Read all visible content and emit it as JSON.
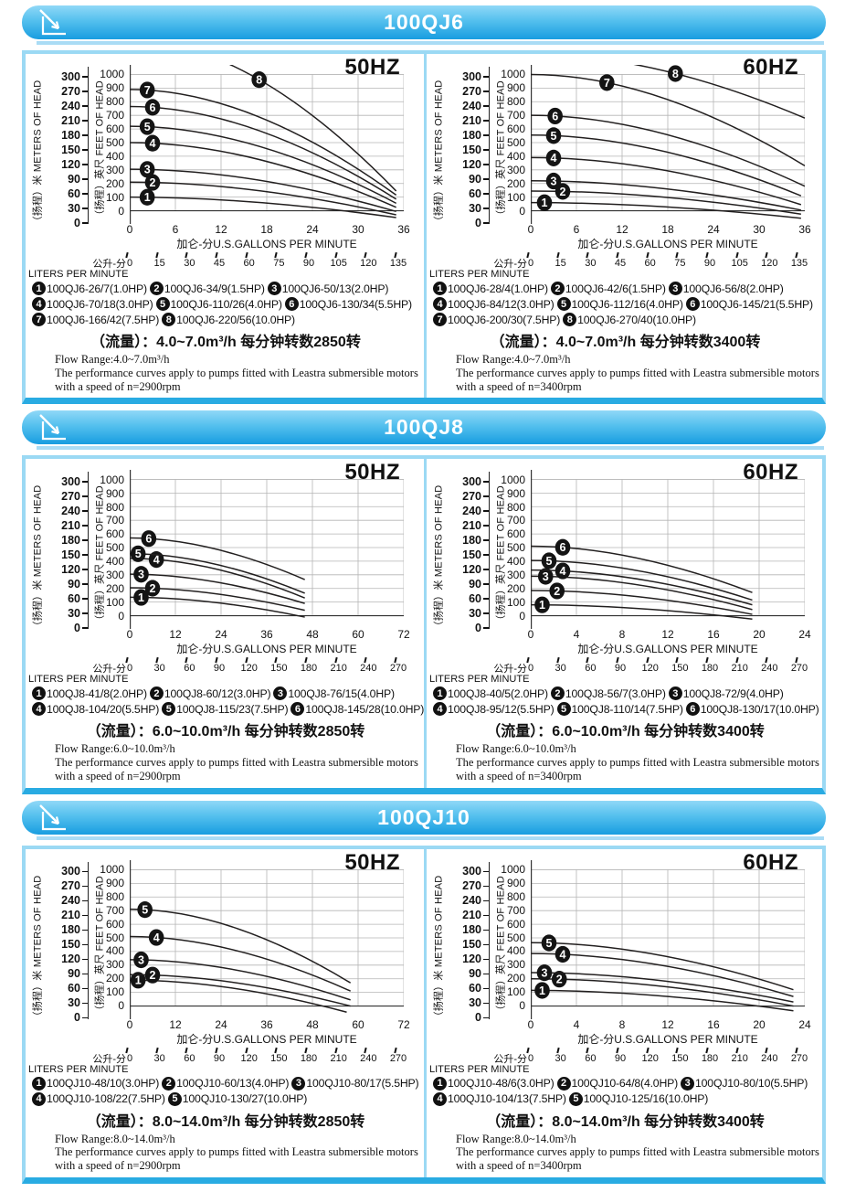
{
  "page": {
    "axis_shared": {
      "meters_title": "（扬程）米 METERS OF HEAD",
      "feet_title": "（扬程）英尺 FEET OF HEAD",
      "gpm_axis_title": "加仑-分U.S.GALLONS PER MINUTE",
      "lpm_prefix": "公升-分",
      "lpm_caption": "LITERS PER MINUTE",
      "meters_ticks": [
        300,
        270,
        240,
        210,
        180,
        150,
        120,
        90,
        60,
        30,
        0
      ],
      "feet_ticks": [
        1000,
        900,
        800,
        700,
        600,
        500,
        400,
        300,
        200,
        100,
        0
      ]
    },
    "colors": {
      "banner_top": "#90d8f7",
      "banner_mid": "#54c0ee",
      "banner_bottom": "#189de0",
      "banner_underline": "#aadcf5",
      "panel_border": "#9bd9f4",
      "panel_border_bottom": "#29abe2",
      "curve": "#221f1f",
      "grid": "#b5b5b5",
      "frame": "#333333"
    }
  },
  "sections": [
    {
      "title": "100QJ6"
    },
    {
      "title": "100QJ8"
    },
    {
      "title": "100QJ10"
    }
  ],
  "chart_data": [
    {
      "type": "line",
      "section": "100QJ6",
      "hz": "50HZ",
      "xlabel": "加仑-分U.S.GALLONS PER MINUTE",
      "ylabel_outer": "（扬程）米 METERS OF HEAD",
      "ylabel_inner": "（扬程）英尺 FEET OF HEAD",
      "x_ticks_gpm": [
        0,
        6,
        12,
        18,
        24,
        30,
        36
      ],
      "x_max_gpm": 36,
      "lpm_ticks": [
        0,
        15,
        30,
        45,
        60,
        75,
        90,
        105,
        120,
        135
      ],
      "feet_ticks": [
        1000,
        900,
        800,
        700,
        600,
        500,
        400,
        300,
        200,
        100,
        0
      ],
      "meters_ticks": [
        300,
        270,
        240,
        210,
        180,
        150,
        120,
        90,
        60,
        30,
        0
      ],
      "series": [
        {
          "no": "1",
          "model": "100QJ6-26/7(1.0HP)",
          "shutoff_head_ft": 100,
          "max_flow_gpm": 35,
          "head_at_max_flow_ft": -50,
          "badge_gpm": 2.3
        },
        {
          "no": "2",
          "model": "100QJ6-34/9(1.5HP)",
          "shutoff_head_ft": 210,
          "max_flow_gpm": 35,
          "head_at_max_flow_ft": -30,
          "badge_gpm": 3
        },
        {
          "no": "3",
          "model": "100QJ6-50/13(2.0HP)",
          "shutoff_head_ft": 305,
          "max_flow_gpm": 35,
          "head_at_max_flow_ft": -5,
          "badge_gpm": 2.3
        },
        {
          "no": "4",
          "model": "100QJ6-70/18(3.0HP)",
          "shutoff_head_ft": 500,
          "max_flow_gpm": 35,
          "head_at_max_flow_ft": 25,
          "badge_gpm": 3
        },
        {
          "no": "5",
          "model": "100QJ6-110/26(4.0HP)",
          "shutoff_head_ft": 620,
          "max_flow_gpm": 35,
          "head_at_max_flow_ft": 55,
          "badge_gpm": 2.3
        },
        {
          "no": "6",
          "model": "100QJ6-130/34(5.5HP)",
          "shutoff_head_ft": 765,
          "max_flow_gpm": 35,
          "head_at_max_flow_ft": 85,
          "badge_gpm": 3
        },
        {
          "no": "7",
          "model": "100QJ6-166/42(7.5HP)",
          "shutoff_head_ft": 890,
          "max_flow_gpm": 35,
          "head_at_max_flow_ft": 115,
          "badge_gpm": 2.3
        },
        {
          "no": "8",
          "model": "100QJ6-220/56(10.0HP)",
          "shutoff_head_ft": 1250,
          "max_flow_gpm": 35,
          "head_at_max_flow_ft": 145,
          "badge_gpm": 17
        }
      ],
      "legend_rows": [
        [
          0,
          1,
          2
        ],
        [
          3,
          4,
          5
        ],
        [
          6,
          7
        ]
      ],
      "flow_cn": "（流量）：4.0~7.0m³/h  每分钟转数2850转",
      "flow_range": "Flow Range:4.0~7.0m³/h",
      "note_line1": "The performance curves apply to pumps fitted with Leastra submersible motors",
      "note_line2": "with a speed of n=2900rpm"
    },
    {
      "type": "line",
      "section": "100QJ6",
      "hz": "60HZ",
      "xlabel": "加仑-分U.S.GALLONS PER MINUTE",
      "ylabel_outer": "（扬程）米 METERS OF HEAD",
      "ylabel_inner": "（扬程）英尺 FEET OF HEAD",
      "x_ticks_gpm": [
        0,
        6,
        12,
        18,
        24,
        30,
        36
      ],
      "x_max_gpm": 36,
      "lpm_ticks": [
        0,
        15,
        30,
        45,
        60,
        75,
        90,
        105,
        120,
        135
      ],
      "feet_ticks": [
        1000,
        900,
        800,
        700,
        600,
        500,
        400,
        300,
        200,
        100,
        0
      ],
      "meters_ticks": [
        300,
        270,
        240,
        210,
        180,
        150,
        120,
        90,
        60,
        30,
        0
      ],
      "series": [
        {
          "no": "1",
          "model": "100QJ6-28/4(1.0HP)",
          "shutoff_head_ft": 60,
          "max_flow_gpm": 35.5,
          "head_at_max_flow_ft": -55,
          "badge_gpm": 1.8
        },
        {
          "no": "2",
          "model": "100QJ6-42/6(1.5HP)",
          "shutoff_head_ft": 145,
          "max_flow_gpm": 35.5,
          "head_at_max_flow_ft": -25,
          "badge_gpm": 4.2
        },
        {
          "no": "3",
          "model": "100QJ6-56/8(2.0HP)",
          "shutoff_head_ft": 220,
          "max_flow_gpm": 35.5,
          "head_at_max_flow_ft": 5,
          "badge_gpm": 3
        },
        {
          "no": "4",
          "model": "100QJ6-84/12(3.0HP)",
          "shutoff_head_ft": 390,
          "max_flow_gpm": 35.5,
          "head_at_max_flow_ft": 45,
          "badge_gpm": 3
        },
        {
          "no": "5",
          "model": "100QJ6-112/16(4.0HP)",
          "shutoff_head_ft": 555,
          "max_flow_gpm": 35.5,
          "head_at_max_flow_ft": 110,
          "badge_gpm": 3
        },
        {
          "no": "6",
          "model": "100QJ6-145/21(5.5HP)",
          "shutoff_head_ft": 700,
          "max_flow_gpm": 36,
          "head_at_max_flow_ft": 180,
          "badge_gpm": 3.2
        },
        {
          "no": "7",
          "model": "100QJ6-200/30(7.5HP)",
          "shutoff_head_ft": 1000,
          "max_flow_gpm": 36,
          "head_at_max_flow_ft": 330,
          "badge_gpm": 10
        },
        {
          "no": "8",
          "model": "100QJ6-270/40(10.0HP)",
          "shutoff_head_ft": 1150,
          "max_flow_gpm": 36,
          "head_at_max_flow_ft": 680,
          "badge_gpm": 19
        }
      ],
      "legend_rows": [
        [
          0,
          1,
          2
        ],
        [
          3,
          4,
          5
        ],
        [
          6,
          7
        ]
      ],
      "flow_cn": "（流量）：4.0~7.0m³/h  每分钟转数3400转",
      "flow_range": "Flow Range:4.0~7.0m³/h",
      "note_line1": "The performance curves apply to pumps fitted with Leastra submersible motors",
      "note_line2": "with a speed of n=3400rpm"
    },
    {
      "type": "line",
      "section": "100QJ8",
      "hz": "50HZ",
      "xlabel": "加仑-分U.S.GALLONS PER MINUTE",
      "ylabel_outer": "（扬程）米 METERS OF HEAD",
      "ylabel_inner": "（扬程）英尺 FEET OF HEAD",
      "x_ticks_gpm": [
        0,
        12,
        24,
        36,
        48,
        60,
        72
      ],
      "x_max_gpm": 72,
      "lpm_ticks": [
        0,
        30,
        60,
        90,
        120,
        150,
        180,
        210,
        240,
        270
      ],
      "feet_ticks": [
        1000,
        900,
        800,
        700,
        600,
        500,
        400,
        300,
        200,
        100,
        0
      ],
      "meters_ticks": [
        300,
        270,
        240,
        210,
        180,
        150,
        120,
        90,
        60,
        30,
        0
      ],
      "series": [
        {
          "no": "1",
          "model": "100QJ8-41/8(2.0HP)",
          "shutoff_head_ft": 135,
          "max_flow_gpm": 46,
          "head_at_max_flow_ft": -10,
          "badge_gpm": 3
        },
        {
          "no": "2",
          "model": "100QJ8-60/12(3.0HP)",
          "shutoff_head_ft": 205,
          "max_flow_gpm": 46,
          "head_at_max_flow_ft": 40,
          "badge_gpm": 6
        },
        {
          "no": "3",
          "model": "100QJ8-76/15(4.0HP)",
          "shutoff_head_ft": 305,
          "max_flow_gpm": 46,
          "head_at_max_flow_ft": 90,
          "badge_gpm": 3
        },
        {
          "no": "4",
          "model": "100QJ8-104/20(5.5HP)",
          "shutoff_head_ft": 420,
          "max_flow_gpm": 46,
          "head_at_max_flow_ft": 130,
          "badge_gpm": 7
        },
        {
          "no": "5",
          "model": "100QJ8-115/23(7.5HP)",
          "shutoff_head_ft": 455,
          "max_flow_gpm": 46,
          "head_at_max_flow_ft": 165,
          "badge_gpm": 2.2
        },
        {
          "no": "6",
          "model": "100QJ8-145/28(10.0HP)",
          "shutoff_head_ft": 570,
          "max_flow_gpm": 46,
          "head_at_max_flow_ft": 265,
          "badge_gpm": 5
        }
      ],
      "legend_rows": [
        [
          0,
          1,
          2
        ],
        [
          3,
          4,
          5
        ]
      ],
      "flow_cn": "（流量）：6.0~10.0m³/h  每分钟转数2850转",
      "flow_range": "Flow Range:6.0~10.0m³/h",
      "note_line1": "The performance curves apply to pumps fitted with Leastra submersible motors",
      "note_line2": "with a speed of n=2900rpm"
    },
    {
      "type": "line",
      "section": "100QJ8",
      "hz": "60HZ",
      "xlabel": "加仑-分U.S.GALLONS PER MINUTE",
      "ylabel_outer": "（扬程）米 METERS OF HEAD",
      "ylabel_inner": "（扬程）英尺 FEET OF HEAD",
      "x_ticks_gpm": [
        0,
        4,
        8,
        12,
        16,
        20,
        24
      ],
      "x_max_gpm": 24,
      "lpm_ticks": [
        0,
        30,
        60,
        90,
        120,
        150,
        180,
        210,
        240,
        270
      ],
      "feet_ticks": [
        1000,
        900,
        800,
        700,
        600,
        500,
        400,
        300,
        200,
        100,
        0
      ],
      "meters_ticks": [
        300,
        270,
        240,
        210,
        180,
        150,
        120,
        90,
        60,
        30,
        0
      ],
      "series": [
        {
          "no": "1",
          "model": "100QJ8-40/5(2.0HP)",
          "shutoff_head_ft": 80,
          "max_flow_gpm": 19.4,
          "head_at_max_flow_ft": -25,
          "badge_gpm": 1
        },
        {
          "no": "2",
          "model": "100QJ8-56/7(3.0HP)",
          "shutoff_head_ft": 185,
          "max_flow_gpm": 19.4,
          "head_at_max_flow_ft": 10,
          "badge_gpm": 2.3
        },
        {
          "no": "3",
          "model": "100QJ8-72/9(4.0HP)",
          "shutoff_head_ft": 290,
          "max_flow_gpm": 19.4,
          "head_at_max_flow_ft": 45,
          "badge_gpm": 1.3
        },
        {
          "no": "4",
          "model": "100QJ8-95/12(5.5HP)",
          "shutoff_head_ft": 335,
          "max_flow_gpm": 19.4,
          "head_at_max_flow_ft": 80,
          "badge_gpm": 2.8
        },
        {
          "no": "5",
          "model": "100QJ8-110/14(7.5HP)",
          "shutoff_head_ft": 405,
          "max_flow_gpm": 19.4,
          "head_at_max_flow_ft": 115,
          "badge_gpm": 1.6
        },
        {
          "no": "6",
          "model": "100QJ8-130/17(10.0HP)",
          "shutoff_head_ft": 510,
          "max_flow_gpm": 19.4,
          "head_at_max_flow_ft": 170,
          "badge_gpm": 2.8
        }
      ],
      "legend_rows": [
        [
          0,
          1,
          2
        ],
        [
          3,
          4,
          5
        ]
      ],
      "flow_cn": "（流量）：6.0~10.0m³/h  每分钟转数3400转",
      "flow_range": "Flow Range:6.0~10.0m³/h",
      "note_line1": "The performance curves apply to pumps fitted with Leastra submersible motors",
      "note_line2": "with a speed of n=3400rpm"
    },
    {
      "type": "line",
      "section": "100QJ10",
      "hz": "50HZ",
      "xlabel": "加仑-分U.S.GALLONS PER MINUTE",
      "ylabel_outer": "（扬程）米 METERS OF HEAD",
      "ylabel_inner": "（扬程）英尺 FEET OF HEAD",
      "x_ticks_gpm": [
        0,
        12,
        24,
        36,
        48,
        60,
        72
      ],
      "x_max_gpm": 72,
      "lpm_ticks": [
        0,
        30,
        60,
        90,
        120,
        150,
        180,
        210,
        240,
        270
      ],
      "feet_ticks": [
        1000,
        900,
        800,
        700,
        600,
        500,
        400,
        300,
        200,
        100,
        0
      ],
      "meters_ticks": [
        300,
        270,
        240,
        210,
        180,
        150,
        120,
        90,
        60,
        30,
        0
      ],
      "series": [
        {
          "no": "1",
          "model": "100QJ10-48/10(3.0HP)",
          "shutoff_head_ft": 190,
          "max_flow_gpm": 57,
          "head_at_max_flow_ft": -45,
          "badge_gpm": 2.2
        },
        {
          "no": "2",
          "model": "100QJ10-60/13(4.0HP)",
          "shutoff_head_ft": 230,
          "max_flow_gpm": 58,
          "head_at_max_flow_ft": 0,
          "badge_gpm": 6
        },
        {
          "no": "3",
          "model": "100QJ10-80/17(5.5HP)",
          "shutoff_head_ft": 340,
          "max_flow_gpm": 58,
          "head_at_max_flow_ft": 45,
          "badge_gpm": 3
        },
        {
          "no": "4",
          "model": "100QJ10-108/22(7.5HP)",
          "shutoff_head_ft": 510,
          "max_flow_gpm": 58,
          "head_at_max_flow_ft": 110,
          "badge_gpm": 7
        },
        {
          "no": "5",
          "model": "100QJ10-130/27(10.0HP)",
          "shutoff_head_ft": 710,
          "max_flow_gpm": 58,
          "head_at_max_flow_ft": 170,
          "badge_gpm": 4
        }
      ],
      "legend_rows": [
        [
          0,
          1,
          2
        ],
        [
          3,
          4
        ]
      ],
      "flow_cn": "（流量）：8.0~14.0m³/h  每分钟转数2850转",
      "flow_range": "Flow Range:8.0~14.0m³/h",
      "note_line1": "The performance curves apply to pumps fitted with Leastra submersible motors",
      "note_line2": "with a speed of n=2900rpm"
    },
    {
      "type": "line",
      "section": "100QJ10",
      "hz": "60HZ",
      "xlabel": "加仑-分U.S.GALLONS PER MINUTE",
      "ylabel_outer": "（扬程）米 METERS OF HEAD",
      "ylabel_inner": "（扬程）英尺 FEET OF HEAD",
      "x_ticks_gpm": [
        0,
        4,
        8,
        12,
        16,
        20,
        24
      ],
      "x_max_gpm": 24,
      "lpm_ticks": [
        0,
        30,
        60,
        90,
        120,
        150,
        180,
        210,
        240,
        270
      ],
      "feet_ticks": [
        1000,
        900,
        800,
        700,
        600,
        500,
        400,
        300,
        200,
        100,
        0
      ],
      "meters_ticks": [
        300,
        270,
        240,
        210,
        180,
        150,
        120,
        90,
        60,
        30,
        0
      ],
      "series": [
        {
          "no": "1",
          "model": "100QJ10-48/6(3.0HP)",
          "shutoff_head_ft": 115,
          "max_flow_gpm": 23,
          "head_at_max_flow_ft": -35,
          "badge_gpm": 1
        },
        {
          "no": "2",
          "model": "100QJ10-64/8(4.0HP)",
          "shutoff_head_ft": 200,
          "max_flow_gpm": 23,
          "head_at_max_flow_ft": 0,
          "badge_gpm": 2.5
        },
        {
          "no": "3",
          "model": "100QJ10-80/10(5.5HP)",
          "shutoff_head_ft": 245,
          "max_flow_gpm": 23,
          "head_at_max_flow_ft": 30,
          "badge_gpm": 1.2
        },
        {
          "no": "4",
          "model": "100QJ10-104/13(7.5HP)",
          "shutoff_head_ft": 385,
          "max_flow_gpm": 23,
          "head_at_max_flow_ft": 70,
          "badge_gpm": 2.8
        },
        {
          "no": "5",
          "model": "100QJ10-125/16(10.0HP)",
          "shutoff_head_ft": 465,
          "max_flow_gpm": 23,
          "head_at_max_flow_ft": 120,
          "badge_gpm": 1.6
        }
      ],
      "legend_rows": [
        [
          0,
          1,
          2
        ],
        [
          3,
          4
        ]
      ],
      "flow_cn": "（流量）：8.0~14.0m³/h  每分钟转数3400转",
      "flow_range": "Flow Range:8.0~14.0m³/h",
      "note_line1": "The performance curves apply to pumps fitted with Leastra submersible motors",
      "note_line2": "with a speed of n=3400rpm"
    }
  ]
}
